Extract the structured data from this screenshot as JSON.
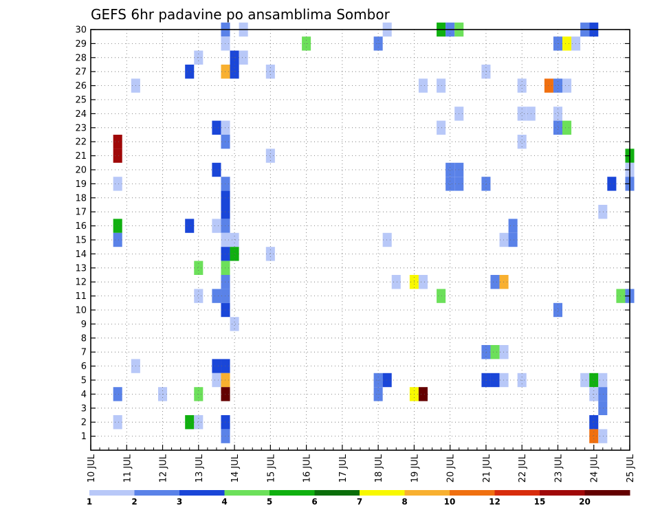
{
  "chart_data": {
    "type": "heatmap",
    "title": "GEFS 6hr padavine po ansamblima Sombor",
    "xlabel": "",
    "ylabel": "",
    "x_start_day": 10,
    "x_end_day": 25,
    "steps_per_day": 4,
    "x_ticks": [
      "10 JUL",
      "11 JUL",
      "12 JUL",
      "13 JUL",
      "14 JUL",
      "15 JUL",
      "16 JUL",
      "17 JUL",
      "18 JUL",
      "19 JUL",
      "20 JUL",
      "21 JUL",
      "22 JUL",
      "23 JUL",
      "24 JUL",
      "25 JUL"
    ],
    "y_ticks": [
      "1",
      "2",
      "3",
      "4",
      "5",
      "6",
      "7",
      "8",
      "9",
      "10",
      "11",
      "12",
      "13",
      "14",
      "15",
      "16",
      "17",
      "18",
      "19",
      "20",
      "21",
      "22",
      "23",
      "24",
      "25",
      "26",
      "27",
      "28",
      "29",
      "30"
    ],
    "ylim": [
      0,
      30
    ],
    "grid": true,
    "colorbar": {
      "colors": [
        "#b8c8f8",
        "#5a82e8",
        "#1a46d8",
        "#6ce05a",
        "#10b010",
        "#0a6e0a",
        "#f8f800",
        "#f8b030",
        "#f07010",
        "#d82c0c",
        "#a00808",
        "#640000"
      ],
      "labels": [
        "1",
        "2",
        "3",
        "4",
        "5",
        "6",
        "7",
        "8",
        "10",
        "12",
        "15",
        "20"
      ]
    },
    "cells": [
      {
        "t": 3.75,
        "m": 30,
        "c": 2
      },
      {
        "t": 4.25,
        "m": 30,
        "c": 1
      },
      {
        "t": 8.25,
        "m": 30,
        "c": 1
      },
      {
        "t": 9.75,
        "m": 30,
        "c": 5
      },
      {
        "t": 10.0,
        "m": 30,
        "c": 2
      },
      {
        "t": 10.25,
        "m": 30,
        "c": 4
      },
      {
        "t": 13.75,
        "m": 30,
        "c": 2
      },
      {
        "t": 14.0,
        "m": 30,
        "c": 3
      },
      {
        "t": 3.75,
        "m": 29,
        "c": 1
      },
      {
        "t": 6.0,
        "m": 29,
        "c": 4
      },
      {
        "t": 8.0,
        "m": 29,
        "c": 2
      },
      {
        "t": 13.0,
        "m": 29,
        "c": 2
      },
      {
        "t": 13.25,
        "m": 29,
        "c": 7
      },
      {
        "t": 13.5,
        "m": 29,
        "c": 1
      },
      {
        "t": 3.0,
        "m": 28,
        "c": 1
      },
      {
        "t": 4.0,
        "m": 28,
        "c": 3
      },
      {
        "t": 4.25,
        "m": 28,
        "c": 1
      },
      {
        "t": 2.75,
        "m": 27,
        "c": 3
      },
      {
        "t": 3.75,
        "m": 27,
        "c": 8
      },
      {
        "t": 4.0,
        "m": 27,
        "c": 3
      },
      {
        "t": 5.0,
        "m": 27,
        "c": 1
      },
      {
        "t": 11.0,
        "m": 27,
        "c": 1
      },
      {
        "t": 1.25,
        "m": 26,
        "c": 1
      },
      {
        "t": 9.25,
        "m": 26,
        "c": 1
      },
      {
        "t": 9.75,
        "m": 26,
        "c": 1
      },
      {
        "t": 12.0,
        "m": 26,
        "c": 1
      },
      {
        "t": 12.75,
        "m": 26,
        "c": 9
      },
      {
        "t": 13.0,
        "m": 26,
        "c": 2
      },
      {
        "t": 13.25,
        "m": 26,
        "c": 1
      },
      {
        "t": 10.25,
        "m": 24,
        "c": 1
      },
      {
        "t": 12.0,
        "m": 24,
        "c": 1
      },
      {
        "t": 12.25,
        "m": 24,
        "c": 1
      },
      {
        "t": 13.0,
        "m": 24,
        "c": 1
      },
      {
        "t": 3.5,
        "m": 23,
        "c": 3
      },
      {
        "t": 3.75,
        "m": 23,
        "c": 1
      },
      {
        "t": 9.75,
        "m": 23,
        "c": 1
      },
      {
        "t": 13.0,
        "m": 23,
        "c": 2
      },
      {
        "t": 13.25,
        "m": 23,
        "c": 4
      },
      {
        "t": 0.75,
        "m": 22,
        "c": 11
      },
      {
        "t": 3.75,
        "m": 22,
        "c": 2
      },
      {
        "t": 12.0,
        "m": 22,
        "c": 1
      },
      {
        "t": 0.75,
        "m": 21,
        "c": 11
      },
      {
        "t": 5.0,
        "m": 21,
        "c": 1
      },
      {
        "t": 15.0,
        "m": 21,
        "c": 5
      },
      {
        "t": 3.5,
        "m": 20,
        "c": 3
      },
      {
        "t": 10.0,
        "m": 20,
        "c": 2
      },
      {
        "t": 10.25,
        "m": 20,
        "c": 2
      },
      {
        "t": 15.0,
        "m": 20,
        "c": 1
      },
      {
        "t": 0.75,
        "m": 19,
        "c": 1
      },
      {
        "t": 3.75,
        "m": 19,
        "c": 2
      },
      {
        "t": 10.0,
        "m": 19,
        "c": 2
      },
      {
        "t": 10.25,
        "m": 19,
        "c": 2
      },
      {
        "t": 11.0,
        "m": 19,
        "c": 2
      },
      {
        "t": 14.5,
        "m": 19,
        "c": 3
      },
      {
        "t": 15.0,
        "m": 19,
        "c": 2
      },
      {
        "t": 3.75,
        "m": 18,
        "c": 3
      },
      {
        "t": 3.75,
        "m": 17,
        "c": 3
      },
      {
        "t": 14.25,
        "m": 17,
        "c": 1
      },
      {
        "t": 0.75,
        "m": 16,
        "c": 5
      },
      {
        "t": 2.75,
        "m": 16,
        "c": 3
      },
      {
        "t": 3.5,
        "m": 16,
        "c": 1
      },
      {
        "t": 3.75,
        "m": 16,
        "c": 2
      },
      {
        "t": 11.75,
        "m": 16,
        "c": 2
      },
      {
        "t": 0.75,
        "m": 15,
        "c": 2
      },
      {
        "t": 3.75,
        "m": 15,
        "c": 1
      },
      {
        "t": 4.0,
        "m": 15,
        "c": 1
      },
      {
        "t": 8.25,
        "m": 15,
        "c": 1
      },
      {
        "t": 11.5,
        "m": 15,
        "c": 1
      },
      {
        "t": 11.75,
        "m": 15,
        "c": 2
      },
      {
        "t": 3.75,
        "m": 14,
        "c": 3
      },
      {
        "t": 4.0,
        "m": 14,
        "c": 5
      },
      {
        "t": 5.0,
        "m": 14,
        "c": 1
      },
      {
        "t": 3.0,
        "m": 13,
        "c": 4
      },
      {
        "t": 3.75,
        "m": 13,
        "c": 4
      },
      {
        "t": 3.75,
        "m": 12,
        "c": 2
      },
      {
        "t": 8.5,
        "m": 12,
        "c": 1
      },
      {
        "t": 9.0,
        "m": 12,
        "c": 7
      },
      {
        "t": 9.25,
        "m": 12,
        "c": 1
      },
      {
        "t": 11.25,
        "m": 12,
        "c": 2
      },
      {
        "t": 11.5,
        "m": 12,
        "c": 8
      },
      {
        "t": 3.0,
        "m": 11,
        "c": 1
      },
      {
        "t": 3.5,
        "m": 11,
        "c": 2
      },
      {
        "t": 3.75,
        "m": 11,
        "c": 2
      },
      {
        "t": 9.75,
        "m": 11,
        "c": 4
      },
      {
        "t": 14.75,
        "m": 11,
        "c": 4
      },
      {
        "t": 15.0,
        "m": 11,
        "c": 2
      },
      {
        "t": 3.75,
        "m": 10,
        "c": 3
      },
      {
        "t": 13.0,
        "m": 10,
        "c": 2
      },
      {
        "t": 4.0,
        "m": 9,
        "c": 1
      },
      {
        "t": 11.0,
        "m": 7,
        "c": 2
      },
      {
        "t": 11.25,
        "m": 7,
        "c": 4
      },
      {
        "t": 11.5,
        "m": 7,
        "c": 1
      },
      {
        "t": 1.25,
        "m": 6,
        "c": 1
      },
      {
        "t": 3.5,
        "m": 6,
        "c": 3
      },
      {
        "t": 3.75,
        "m": 6,
        "c": 3
      },
      {
        "t": 3.5,
        "m": 5,
        "c": 1
      },
      {
        "t": 3.75,
        "m": 5,
        "c": 8
      },
      {
        "t": 8.0,
        "m": 5,
        "c": 2
      },
      {
        "t": 8.25,
        "m": 5,
        "c": 3
      },
      {
        "t": 11.0,
        "m": 5,
        "c": 3
      },
      {
        "t": 11.25,
        "m": 5,
        "c": 3
      },
      {
        "t": 11.5,
        "m": 5,
        "c": 1
      },
      {
        "t": 12.0,
        "m": 5,
        "c": 1
      },
      {
        "t": 13.75,
        "m": 5,
        "c": 1
      },
      {
        "t": 14.0,
        "m": 5,
        "c": 5
      },
      {
        "t": 14.25,
        "m": 5,
        "c": 1
      },
      {
        "t": 0.75,
        "m": 4,
        "c": 2
      },
      {
        "t": 2.0,
        "m": 4,
        "c": 1
      },
      {
        "t": 3.0,
        "m": 4,
        "c": 4
      },
      {
        "t": 3.75,
        "m": 4,
        "c": 12
      },
      {
        "t": 8.0,
        "m": 4,
        "c": 2
      },
      {
        "t": 9.0,
        "m": 4,
        "c": 7
      },
      {
        "t": 9.25,
        "m": 4,
        "c": 12
      },
      {
        "t": 14.0,
        "m": 4,
        "c": 1
      },
      {
        "t": 14.25,
        "m": 4,
        "c": 2
      },
      {
        "t": 14.25,
        "m": 3,
        "c": 2
      },
      {
        "t": 0.75,
        "m": 2,
        "c": 1
      },
      {
        "t": 2.75,
        "m": 2,
        "c": 5
      },
      {
        "t": 3.0,
        "m": 2,
        "c": 1
      },
      {
        "t": 3.75,
        "m": 2,
        "c": 3
      },
      {
        "t": 14.0,
        "m": 2,
        "c": 3
      },
      {
        "t": 3.75,
        "m": 1,
        "c": 2
      },
      {
        "t": 14.0,
        "m": 1,
        "c": 9
      },
      {
        "t": 14.25,
        "m": 1,
        "c": 1
      }
    ]
  }
}
